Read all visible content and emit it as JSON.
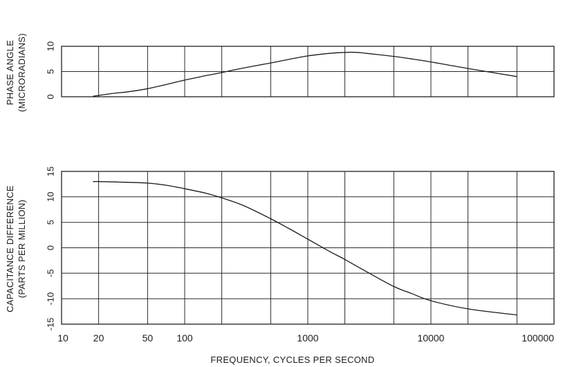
{
  "chart_data": [
    {
      "id": "phase",
      "type": "line",
      "ylabel_line1": "PHASE ANGLE",
      "ylabel_line2": "(MICRORADIANS)",
      "xlabel": "",
      "xscale": "log",
      "xlim": [
        10,
        100000
      ],
      "ylim": [
        0,
        10
      ],
      "yticks": [
        0,
        5,
        10
      ],
      "ytick_labels": [
        "0",
        "5",
        "10"
      ],
      "grid": true,
      "series": [
        {
          "x": [
            18,
            25,
            35,
            50,
            70,
            100,
            150,
            200,
            300,
            500,
            700,
            1000,
            1500,
            2000,
            2500,
            3000,
            5000,
            7000,
            10000,
            20000,
            50000
          ],
          "y": [
            0.1,
            0.6,
            1.0,
            1.6,
            2.4,
            3.3,
            4.2,
            4.8,
            5.7,
            6.7,
            7.4,
            8.1,
            8.6,
            8.8,
            8.8,
            8.6,
            8.0,
            7.5,
            6.9,
            5.6,
            4.0
          ]
        }
      ]
    },
    {
      "id": "capacitance",
      "type": "line",
      "ylabel_line1": "CAPACITANCE DIFFERENCE",
      "ylabel_line2": "(PARTS PER MILLION)",
      "xlabel": "FREQUENCY, CYCLES PER SECOND",
      "xscale": "log",
      "xlim": [
        10,
        100000
      ],
      "ylim": [
        -15,
        15
      ],
      "yticks": [
        -15,
        -10,
        -5,
        0,
        5,
        10,
        15
      ],
      "ytick_labels": [
        "-15",
        "-10",
        "-5",
        "0",
        "5",
        "10",
        "15"
      ],
      "xticks": [
        10,
        20,
        50,
        100,
        1000,
        10000,
        100000
      ],
      "xtick_labels": [
        "10",
        "20",
        "50",
        "100",
        "1000",
        "10000",
        "100000"
      ],
      "grid": true,
      "series": [
        {
          "x": [
            18,
            20,
            30,
            50,
            70,
            100,
            150,
            200,
            300,
            500,
            700,
            1000,
            1500,
            2000,
            3000,
            5000,
            7000,
            10000,
            20000,
            50000
          ],
          "y": [
            13.0,
            13.0,
            12.9,
            12.7,
            12.3,
            11.6,
            10.7,
            9.8,
            8.3,
            5.7,
            3.8,
            1.7,
            -0.7,
            -2.3,
            -4.7,
            -7.6,
            -9.0,
            -10.4,
            -12.0,
            -13.2
          ]
        }
      ]
    }
  ]
}
